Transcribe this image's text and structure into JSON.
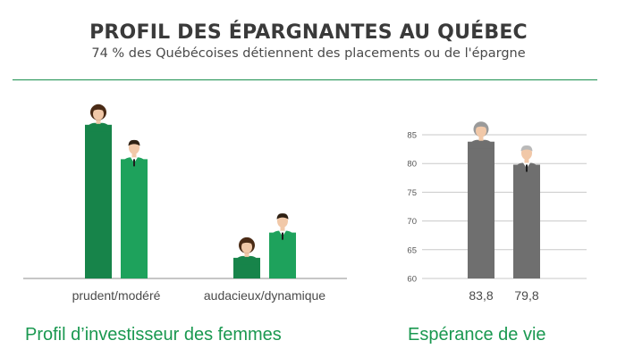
{
  "header": {
    "title": "PROFIL DES ÉPARGNANTES AU QUÉBEC",
    "subtitle": "74 % des Québécoises détiennent des placements ou de l'épargne"
  },
  "colors": {
    "dark_green": "#17844a",
    "light_green": "#1ea25c",
    "grey_bar": "#6f6f6f",
    "title_text": "#3a3a3a",
    "panel_title": "#1a9850",
    "rule": "#1a8f4e"
  },
  "chart_data": [
    {
      "type": "bar",
      "title": "Profil d’investisseur des femmes",
      "categories": [
        "prudent/modéré",
        "audacieux/dynamique"
      ],
      "series": [
        {
          "name": "",
          "icon": "woman-icon",
          "values": [
            67,
            9
          ],
          "color": "#17844a"
        },
        {
          "name": "",
          "icon": "man-icon",
          "values": [
            52,
            20
          ],
          "color": "#1ea25c"
        }
      ],
      "grid": false
    },
    {
      "type": "bar",
      "title": "Espérance de vie",
      "categories": [
        "83,8",
        "79,8"
      ],
      "values": [
        83.8,
        79.8
      ],
      "icons": [
        "elderly-woman-icon",
        "elderly-man-icon"
      ],
      "yticks": [
        "85",
        "80",
        "75",
        "70",
        "65",
        "60"
      ],
      "ylim": [
        60,
        85
      ],
      "grid": true,
      "color": "#6f6f6f"
    }
  ]
}
